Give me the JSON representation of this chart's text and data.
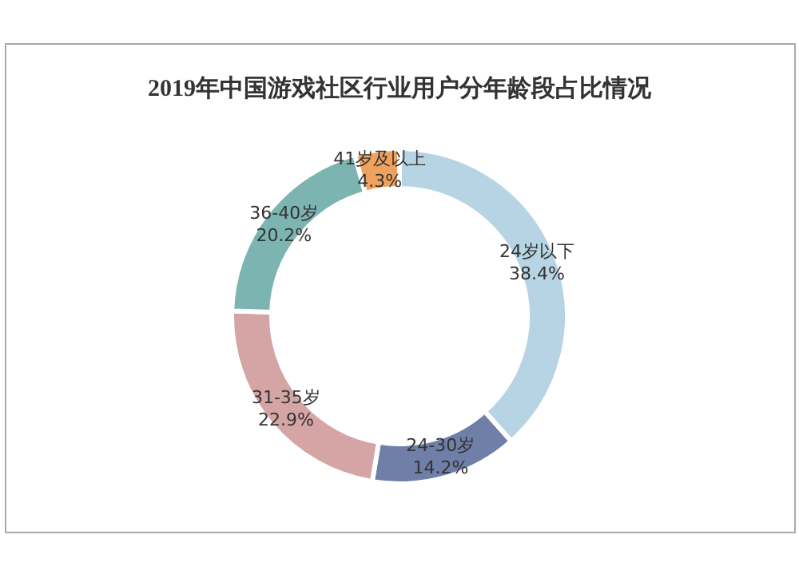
{
  "chart_data": {
    "type": "donut",
    "title": "2019年中国游戏社区行业用户分年龄段占比情况",
    "categories": [
      "24岁以下",
      "24-30岁",
      "31-35岁",
      "36-40岁",
      "41岁及以上"
    ],
    "values": [
      38.4,
      14.2,
      22.9,
      20.2,
      4.3
    ],
    "colors": [
      "#b6d4e4",
      "#6f7fa7",
      "#d5a4a4",
      "#7cb4b2",
      "#efa25d"
    ],
    "value_labels": [
      "38.4%",
      "14.2%",
      "22.9%",
      "20.2%",
      "4.3%"
    ]
  }
}
